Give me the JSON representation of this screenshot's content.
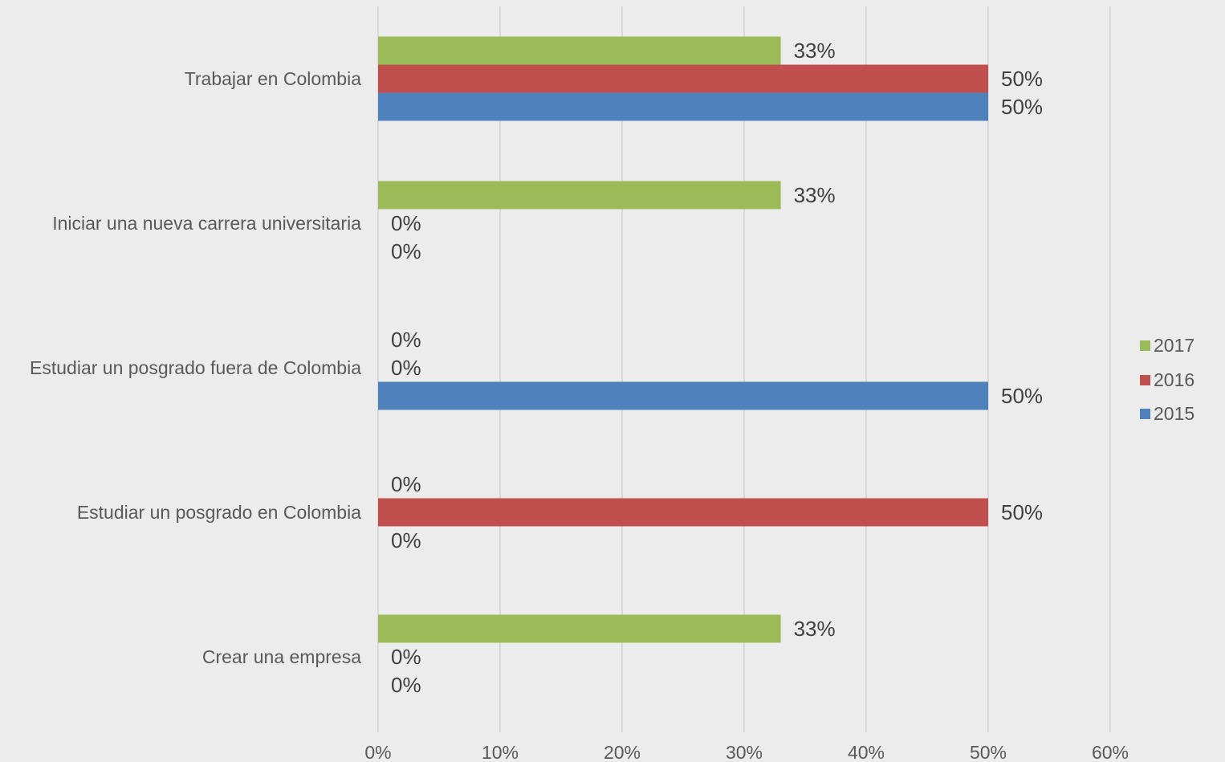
{
  "chart_data": {
    "type": "bar",
    "orientation": "horizontal",
    "categories": [
      "Trabajar en Colombia",
      "Iniciar una nueva carrera universitaria",
      "Estudiar un posgrado fuera de Colombia",
      "Estudiar un posgrado en Colombia",
      "Crear una empresa"
    ],
    "series": [
      {
        "name": "2017",
        "color": "#9bbb59",
        "values": [
          33,
          33,
          0,
          0,
          33
        ],
        "labels": [
          "33%",
          "33%",
          "0%",
          "0%",
          "33%"
        ]
      },
      {
        "name": "2016",
        "color": "#c0504d",
        "values": [
          50,
          0,
          0,
          50,
          0
        ],
        "labels": [
          "50%",
          "0%",
          "0%",
          "50%",
          "0%"
        ]
      },
      {
        "name": "2015",
        "color": "#4f81bd",
        "values": [
          50,
          0,
          50,
          0,
          0
        ],
        "labels": [
          "50%",
          "0%",
          "50%",
          "0%",
          "0%"
        ]
      }
    ],
    "xlim": [
      0,
      60
    ],
    "xticks": [
      "0%",
      "10%",
      "20%",
      "30%",
      "40%",
      "50%",
      "60%"
    ],
    "title": "",
    "xlabel": "",
    "ylabel": "",
    "grid": true,
    "legend_position": "right"
  }
}
